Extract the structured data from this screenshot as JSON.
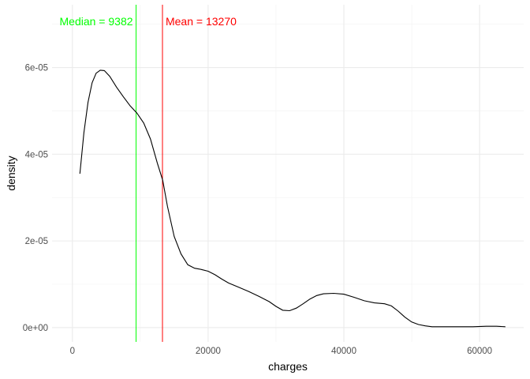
{
  "chart_data": {
    "type": "line",
    "xlabel": "charges",
    "ylabel": "density",
    "xlim": [
      -3000,
      66500
    ],
    "ylim": [
      -3.3e-06,
      7.45e-05
    ],
    "x_ticks": [
      0,
      20000,
      40000,
      60000
    ],
    "x_tick_labels": [
      "0",
      "20000",
      "40000",
      "60000"
    ],
    "y_ticks": [
      0,
      2e-05,
      4e-05,
      6e-05
    ],
    "y_tick_labels": [
      "0e+00",
      "2e-05",
      "4e-05",
      "6e-05"
    ],
    "grid": true,
    "legend": "none",
    "series": [
      {
        "color": "#000000",
        "points": [
          [
            1100,
            3.55e-05
          ],
          [
            1700,
            4.5e-05
          ],
          [
            2300,
            5.2e-05
          ],
          [
            2900,
            5.65e-05
          ],
          [
            3500,
            5.87e-05
          ],
          [
            4100,
            5.94e-05
          ],
          [
            4700,
            5.93e-05
          ],
          [
            5500,
            5.8e-05
          ],
          [
            6500,
            5.55e-05
          ],
          [
            7500,
            5.33e-05
          ],
          [
            8500,
            5.12e-05
          ],
          [
            9500,
            4.95e-05
          ],
          [
            10500,
            4.72e-05
          ],
          [
            11500,
            4.35e-05
          ],
          [
            12500,
            3.8e-05
          ],
          [
            13300,
            3.4e-05
          ],
          [
            14000,
            2.8e-05
          ],
          [
            15000,
            2.1e-05
          ],
          [
            16000,
            1.7e-05
          ],
          [
            17000,
            1.45e-05
          ],
          [
            18000,
            1.37e-05
          ],
          [
            19000,
            1.34e-05
          ],
          [
            20000,
            1.3e-05
          ],
          [
            21000,
            1.22e-05
          ],
          [
            22000,
            1.12e-05
          ],
          [
            23000,
            1.03e-05
          ],
          [
            24500,
            9.3e-06
          ],
          [
            26000,
            8.3e-06
          ],
          [
            27500,
            7.2e-06
          ],
          [
            29000,
            6e-06
          ],
          [
            30000,
            4.9e-06
          ],
          [
            31000,
            4e-06
          ],
          [
            32000,
            3.9e-06
          ],
          [
            33000,
            4.5e-06
          ],
          [
            34000,
            5.5e-06
          ],
          [
            35000,
            6.6e-06
          ],
          [
            36000,
            7.4e-06
          ],
          [
            37000,
            7.8e-06
          ],
          [
            38500,
            7.9e-06
          ],
          [
            40000,
            7.7e-06
          ],
          [
            41500,
            7e-06
          ],
          [
            43000,
            6.2e-06
          ],
          [
            44500,
            5.7e-06
          ],
          [
            46000,
            5.5e-06
          ],
          [
            47000,
            5e-06
          ],
          [
            48000,
            3.8e-06
          ],
          [
            49000,
            2.4e-06
          ],
          [
            50000,
            1.3e-06
          ],
          [
            51000,
            7e-07
          ],
          [
            52000,
            4e-07
          ],
          [
            53000,
            2e-07
          ],
          [
            55000,
            2e-07
          ],
          [
            57000,
            2e-07
          ],
          [
            59000,
            2e-07
          ],
          [
            61000,
            3e-07
          ],
          [
            62500,
            3e-07
          ],
          [
            63800,
            2e-07
          ]
        ]
      }
    ],
    "annotations": [
      {
        "type": "vline",
        "x": 9382,
        "color": "#00ff00",
        "label": "Median = 9382",
        "label_side": "left"
      },
      {
        "type": "vline",
        "x": 13270,
        "color": "#ff0000",
        "label": "Mean = 13270",
        "label_side": "right"
      }
    ]
  }
}
